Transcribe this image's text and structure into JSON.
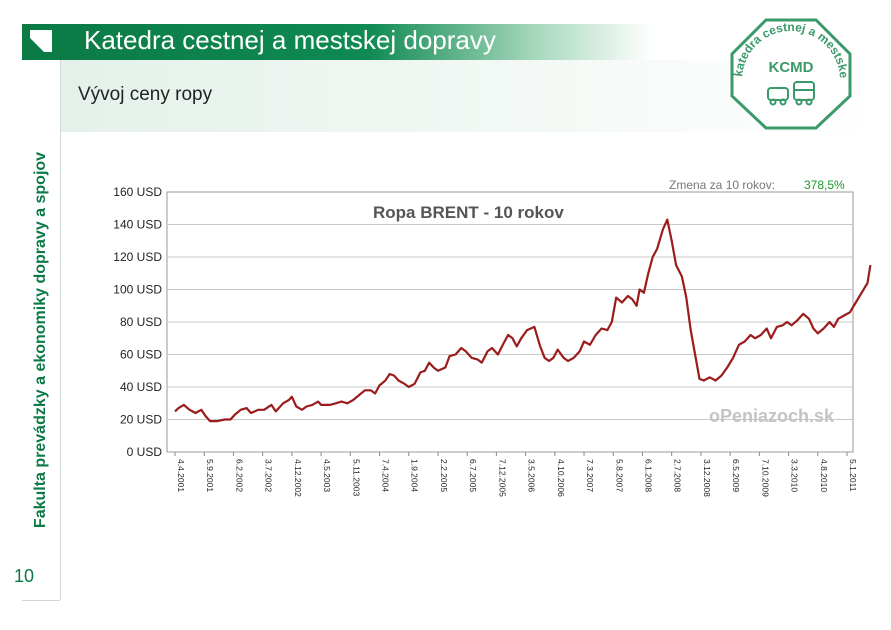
{
  "header": {
    "title": "Katedra cestnej a mestskej dopravy",
    "subtitle": "Vývoj ceny ropy"
  },
  "sidebar": {
    "text": "Fakulta prevádzky a ekonomiky dopravy a spojov",
    "slide_number": "10"
  },
  "seal": {
    "arc_text": "katedra cestnej a mestskej dopravy",
    "abbrev": "KCMD"
  },
  "colors": {
    "brand_green": "#0b7a45",
    "line": "#9b1c1c",
    "change_green": "#1a9a2a"
  },
  "chart_data": {
    "type": "line",
    "title": "Ropa BRENT - 10 rokov",
    "change_label": "Zmena za 10 rokov:",
    "change_value": "378,5%",
    "watermark": "oPeniazoch.sk",
    "xlabel": "",
    "ylabel": "",
    "ylim": [
      0,
      160
    ],
    "grid": true,
    "y_ticks": [
      "0 USD",
      "20 USD",
      "40 USD",
      "60 USD",
      "80 USD",
      "100 USD",
      "120 USD",
      "140 USD",
      "160 USD"
    ],
    "x_ticks": [
      "4.4.2001",
      "5.9.2001",
      "6.2.2002",
      "3.7.2002",
      "4.12.2002",
      "4.5.2003",
      "5.11.2003",
      "7.4.2004",
      "1.9.2004",
      "2.2.2005",
      "6.7.2005",
      "7.12.2005",
      "3.5.2006",
      "4.10.2006",
      "7.3.2007",
      "5.8.2007",
      "6.1.2008",
      "2.7.2008",
      "3.12.2008",
      "6.5.2009",
      "7.10.2009",
      "3.3.2010",
      "4.8.2010",
      "5.1.2011"
    ],
    "series": [
      {
        "name": "Ropa BRENT (USD)",
        "points": [
          [
            0,
            25
          ],
          [
            0.12,
            27
          ],
          [
            0.3,
            29
          ],
          [
            0.5,
            26
          ],
          [
            0.7,
            24
          ],
          [
            0.9,
            26
          ],
          [
            1.05,
            22
          ],
          [
            1.2,
            19
          ],
          [
            1.45,
            19
          ],
          [
            1.7,
            20
          ],
          [
            1.9,
            20
          ],
          [
            2.05,
            23
          ],
          [
            2.25,
            26
          ],
          [
            2.45,
            27
          ],
          [
            2.6,
            24
          ],
          [
            2.85,
            26
          ],
          [
            3.05,
            26
          ],
          [
            3.3,
            29
          ],
          [
            3.45,
            25
          ],
          [
            3.7,
            30
          ],
          [
            3.9,
            32
          ],
          [
            4.0,
            34
          ],
          [
            4.15,
            28
          ],
          [
            4.35,
            26
          ],
          [
            4.5,
            28
          ],
          [
            4.7,
            29
          ],
          [
            4.9,
            31
          ],
          [
            5.0,
            29
          ],
          [
            5.3,
            29
          ],
          [
            5.5,
            30
          ],
          [
            5.7,
            31
          ],
          [
            5.9,
            30
          ],
          [
            6.1,
            32
          ],
          [
            6.3,
            35
          ],
          [
            6.5,
            38
          ],
          [
            6.7,
            38
          ],
          [
            6.85,
            36
          ],
          [
            7.0,
            41
          ],
          [
            7.2,
            44
          ],
          [
            7.35,
            48
          ],
          [
            7.5,
            47
          ],
          [
            7.65,
            44
          ],
          [
            7.85,
            42
          ],
          [
            8.0,
            40
          ],
          [
            8.2,
            42
          ],
          [
            8.4,
            49
          ],
          [
            8.55,
            50
          ],
          [
            8.7,
            55
          ],
          [
            8.85,
            52
          ],
          [
            9.0,
            50
          ],
          [
            9.25,
            52
          ],
          [
            9.4,
            59
          ],
          [
            9.6,
            60
          ],
          [
            9.8,
            64
          ],
          [
            9.95,
            62
          ],
          [
            10.15,
            58
          ],
          [
            10.35,
            57
          ],
          [
            10.5,
            55
          ],
          [
            10.7,
            62
          ],
          [
            10.85,
            64
          ],
          [
            11.05,
            60
          ],
          [
            11.25,
            67
          ],
          [
            11.4,
            72
          ],
          [
            11.55,
            70
          ],
          [
            11.7,
            65
          ],
          [
            11.85,
            70
          ],
          [
            12.05,
            75
          ],
          [
            12.3,
            77
          ],
          [
            12.5,
            65
          ],
          [
            12.65,
            58
          ],
          [
            12.8,
            56
          ],
          [
            12.95,
            58
          ],
          [
            13.1,
            63
          ],
          [
            13.3,
            58
          ],
          [
            13.45,
            56
          ],
          [
            13.65,
            58
          ],
          [
            13.85,
            62
          ],
          [
            14.0,
            68
          ],
          [
            14.2,
            66
          ],
          [
            14.4,
            72
          ],
          [
            14.6,
            76
          ],
          [
            14.8,
            75
          ],
          [
            14.95,
            80
          ],
          [
            15.1,
            95
          ],
          [
            15.3,
            92
          ],
          [
            15.5,
            96
          ],
          [
            15.65,
            94
          ],
          [
            15.8,
            90
          ],
          [
            15.9,
            100
          ],
          [
            16.05,
            98
          ],
          [
            16.2,
            110
          ],
          [
            16.35,
            120
          ],
          [
            16.5,
            125
          ],
          [
            16.7,
            137
          ],
          [
            16.85,
            143
          ],
          [
            17.0,
            130
          ],
          [
            17.15,
            115
          ],
          [
            17.35,
            108
          ],
          [
            17.5,
            95
          ],
          [
            17.65,
            75
          ],
          [
            17.8,
            60
          ],
          [
            17.95,
            45
          ],
          [
            18.1,
            44
          ],
          [
            18.3,
            46
          ],
          [
            18.5,
            44
          ],
          [
            18.7,
            47
          ],
          [
            18.9,
            52
          ],
          [
            19.1,
            58
          ],
          [
            19.3,
            66
          ],
          [
            19.5,
            68
          ],
          [
            19.7,
            72
          ],
          [
            19.85,
            70
          ],
          [
            20.05,
            72
          ],
          [
            20.25,
            76
          ],
          [
            20.4,
            70
          ],
          [
            20.6,
            77
          ],
          [
            20.8,
            78
          ],
          [
            20.95,
            80
          ],
          [
            21.1,
            78
          ],
          [
            21.3,
            81
          ],
          [
            21.5,
            85
          ],
          [
            21.7,
            82
          ],
          [
            21.85,
            76
          ],
          [
            22.0,
            73
          ],
          [
            22.2,
            76
          ],
          [
            22.4,
            80
          ],
          [
            22.55,
            77
          ],
          [
            22.7,
            82
          ],
          [
            22.9,
            84
          ],
          [
            23.1,
            86
          ],
          [
            23.3,
            92
          ],
          [
            23.5,
            98
          ],
          [
            23.7,
            104
          ],
          [
            23.8,
            115
          ]
        ]
      }
    ]
  }
}
